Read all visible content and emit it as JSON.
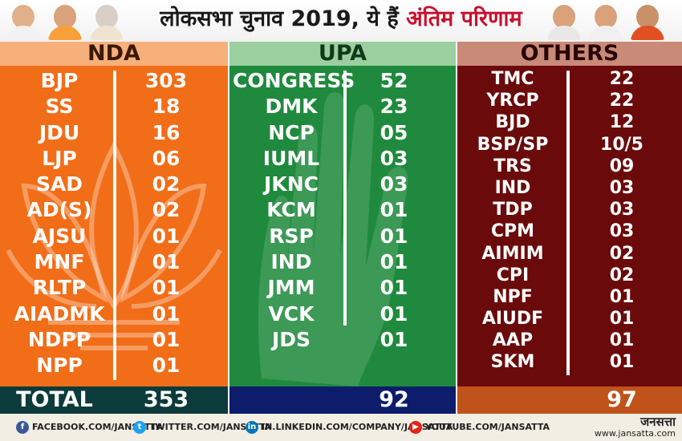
{
  "header": {
    "title_prefix": "लोकसभा चुनाव 2019, ये हैं ",
    "title_highlight": "अंतिम परिणाम"
  },
  "colors": {
    "nda": "#f26d18",
    "upa": "#1f8a3d",
    "others": "#6a0a0a",
    "title_highlight": "#c8102e"
  },
  "nda": {
    "heading": "NDA",
    "rows": [
      {
        "party": "BJP",
        "seats": "303"
      },
      {
        "party": "SS",
        "seats": "18"
      },
      {
        "party": "JDU",
        "seats": "16"
      },
      {
        "party": "LJP",
        "seats": "06"
      },
      {
        "party": "SAD",
        "seats": "02"
      },
      {
        "party": "AD(S)",
        "seats": "02"
      },
      {
        "party": "AJSU",
        "seats": "01"
      },
      {
        "party": "MNF",
        "seats": "01"
      },
      {
        "party": "RLTP",
        "seats": "01"
      },
      {
        "party": "AIADMK",
        "seats": "01"
      },
      {
        "party": "NDPP",
        "seats": "01"
      },
      {
        "party": "NPP",
        "seats": "01"
      }
    ],
    "total_label": "TOTAL",
    "total": "353"
  },
  "upa": {
    "heading": "UPA",
    "rows": [
      {
        "party": "CONGRESS",
        "seats": "52"
      },
      {
        "party": "DMK",
        "seats": "23"
      },
      {
        "party": "NCP",
        "seats": "05"
      },
      {
        "party": "IUML",
        "seats": "03"
      },
      {
        "party": "JKNC",
        "seats": "03"
      },
      {
        "party": "KCM",
        "seats": "01"
      },
      {
        "party": "RSP",
        "seats": "01"
      },
      {
        "party": "IND",
        "seats": "01"
      },
      {
        "party": "JMM",
        "seats": "01"
      },
      {
        "party": "VCK",
        "seats": "01"
      },
      {
        "party": "JDS",
        "seats": "01"
      }
    ],
    "total": "92"
  },
  "others": {
    "heading": "OTHERS",
    "rows": [
      {
        "party": "TMC",
        "seats": "22"
      },
      {
        "party": "YRCP",
        "seats": "22"
      },
      {
        "party": "BJD",
        "seats": "12"
      },
      {
        "party": "BSP/SP",
        "seats": "10/5"
      },
      {
        "party": "TRS",
        "seats": "09"
      },
      {
        "party": "IND",
        "seats": "03"
      },
      {
        "party": "TDP",
        "seats": "03"
      },
      {
        "party": "CPM",
        "seats": "03"
      },
      {
        "party": "AIMIM",
        "seats": "02"
      },
      {
        "party": "CPI",
        "seats": "02"
      },
      {
        "party": "NPF",
        "seats": "01"
      },
      {
        "party": "AIUDF",
        "seats": "01"
      },
      {
        "party": "AAP",
        "seats": "01"
      },
      {
        "party": "SKM",
        "seats": "01"
      }
    ],
    "total": "97"
  },
  "footer": {
    "facebook": "FACEBOOK.COM/JANSATTA",
    "twitter": "TWITTER.COM/JANSATTA",
    "linkedin": "IN.LINKEDIN.COM/COMPANY/JANSATTA",
    "youtube": "YOUTUBE.COM/JANSATTA",
    "brand": "जनसत्ता",
    "url": "www.jansatta.com"
  }
}
